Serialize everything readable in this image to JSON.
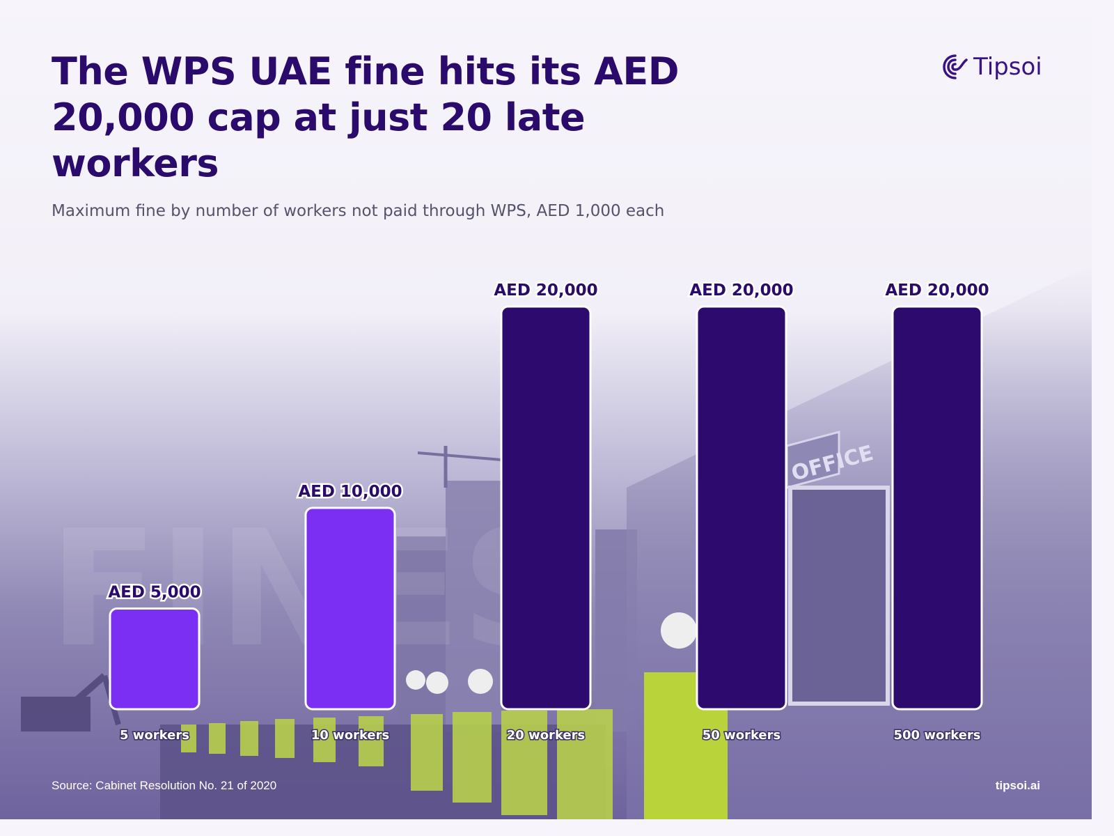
{
  "title": "The WPS UAE fine hits its AED 20,000 cap at just 20 late workers",
  "subtitle": "Maximum fine by number of workers not paid through WPS, AED 1,000 each",
  "brand": {
    "name": "Tipsoi",
    "site": "tipsoi.ai",
    "color": "#3a1383"
  },
  "source": "Source: Cabinet Resolution No. 21 of 2020",
  "background": {
    "watermark": "FINES",
    "sign_text": "OFFICE"
  },
  "colors": {
    "below_cap": "#7b2ff2",
    "at_cap": "#2d0a6e",
    "title": "#2a0a6b"
  },
  "chart_data": {
    "type": "bar",
    "categories": [
      "5 workers",
      "10 workers",
      "20 workers",
      "50 workers",
      "500 workers"
    ],
    "values": [
      5000,
      10000,
      20000,
      20000,
      20000
    ],
    "value_labels": [
      "AED 5,000",
      "AED 10,000",
      "AED 20,000",
      "AED 20,000",
      "AED 20,000"
    ],
    "at_cap": [
      false,
      false,
      true,
      true,
      true
    ],
    "ylim": [
      0,
      20000
    ],
    "xlabel": "",
    "ylabel": "",
    "grid": false,
    "legend": "none"
  }
}
